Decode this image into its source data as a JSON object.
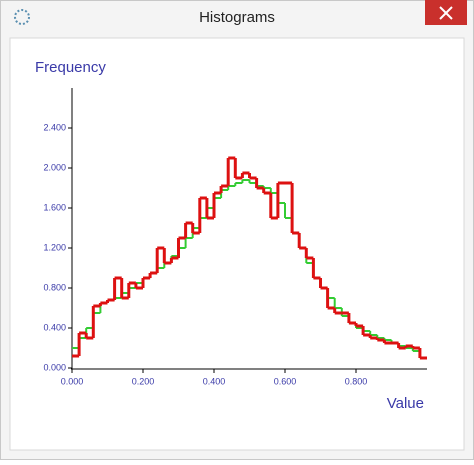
{
  "window": {
    "title": "Histograms"
  },
  "chart_data": {
    "type": "histogram",
    "y_label": "Frequency",
    "x_label": "Value",
    "bins": [
      0,
      0.02,
      0.04,
      0.06,
      0.08,
      0.1,
      0.12,
      0.14,
      0.16,
      0.18,
      0.2,
      0.22,
      0.24,
      0.26,
      0.28,
      0.3,
      0.32,
      0.34,
      0.36,
      0.38,
      0.4,
      0.42,
      0.44,
      0.46,
      0.48,
      0.5,
      0.52,
      0.54,
      0.56,
      0.58,
      0.6,
      0.62,
      0.64,
      0.66,
      0.68,
      0.7,
      0.72,
      0.74,
      0.76,
      0.78,
      0.8,
      0.82,
      0.84,
      0.86,
      0.88,
      0.9,
      0.92,
      0.94,
      0.96,
      0.98,
      1.0
    ],
    "series": [
      {
        "color": "#33cc33",
        "values": [
          0.2,
          0.3,
          0.4,
          0.55,
          0.65,
          0.68,
          0.7,
          0.75,
          0.8,
          0.85,
          0.9,
          0.95,
          1.0,
          1.05,
          1.12,
          1.2,
          1.3,
          1.4,
          1.5,
          1.6,
          1.7,
          1.78,
          1.82,
          1.85,
          1.88,
          1.85,
          1.82,
          1.8,
          1.75,
          1.65,
          1.5,
          1.35,
          1.2,
          1.05,
          0.9,
          0.8,
          0.7,
          0.6,
          0.52,
          0.45,
          0.4,
          0.37,
          0.33,
          0.3,
          0.28,
          0.25,
          0.22,
          0.2,
          0.17,
          0.1
        ]
      },
      {
        "color": "#dd1111",
        "values": [
          0.12,
          0.35,
          0.3,
          0.62,
          0.65,
          0.68,
          0.9,
          0.7,
          0.85,
          0.8,
          0.9,
          0.95,
          1.2,
          1.05,
          1.1,
          1.3,
          1.45,
          1.35,
          1.7,
          1.5,
          1.75,
          1.82,
          2.1,
          1.9,
          1.95,
          1.9,
          1.8,
          1.75,
          1.5,
          1.85,
          1.85,
          1.35,
          1.2,
          1.1,
          0.9,
          0.8,
          0.6,
          0.55,
          0.55,
          0.45,
          0.42,
          0.33,
          0.3,
          0.28,
          0.25,
          0.25,
          0.2,
          0.22,
          0.2,
          0.1
        ]
      }
    ],
    "xlim": [
      0,
      1
    ],
    "ylim": [
      0,
      2.8
    ],
    "xticks": [
      {
        "value": 0,
        "label": "0.000"
      },
      {
        "value": 0.2,
        "label": "0.200"
      },
      {
        "value": 0.4,
        "label": "0.400"
      },
      {
        "value": 0.6,
        "label": "0.600"
      },
      {
        "value": 0.8,
        "label": "0.800"
      }
    ],
    "yticks": [
      {
        "value": 0,
        "label": "0.000"
      },
      {
        "value": 0.4,
        "label": "0.400"
      },
      {
        "value": 0.8,
        "label": "0.800"
      },
      {
        "value": 1.2,
        "label": "1.200"
      },
      {
        "value": 1.6,
        "label": "1.600"
      },
      {
        "value": 2.0,
        "label": "2.000"
      },
      {
        "value": 2.4,
        "label": "2.400"
      }
    ]
  }
}
